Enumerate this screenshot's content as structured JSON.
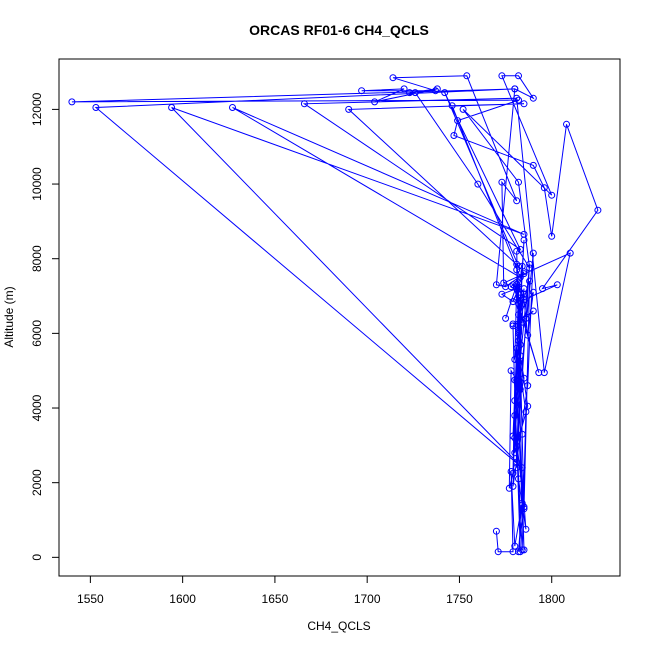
{
  "chart_data": {
    "type": "line",
    "title": "ORCAS RF01-6 CH4_QCLS",
    "xlabel": "CH4_QCLS",
    "ylabel": "Altitude (m)",
    "xlim": [
      1533,
      1837
    ],
    "ylim": [
      -500,
      13350
    ],
    "xticks": [
      1550,
      1600,
      1650,
      1700,
      1750,
      1800
    ],
    "yticks": [
      0,
      2000,
      4000,
      6000,
      8000,
      10000,
      12000
    ],
    "color": "#0000ff",
    "marker": "open-circle",
    "grid": false,
    "legend": "none",
    "series": [
      {
        "x": [
          1770,
          1771,
          1779,
          1778,
          1780,
          1784,
          1782,
          1785,
          1781,
          1783,
          1782,
          1784,
          1786,
          1780,
          1779,
          1777,
          1778,
          1781,
          1785,
          1782,
          1780,
          1787,
          1783,
          1785,
          1779,
          1781,
          1786,
          1784,
          1780,
          1782,
          1783,
          1781,
          1779,
          1786,
          1790,
          1779,
          1784,
          1782,
          1793,
          1781,
          1785,
          1783,
          1779,
          1781,
          1780,
          1782,
          1785,
          1780,
          1783,
          1781,
          1784,
          1781,
          1782,
          1785,
          1780,
          1788,
          1781,
          1784,
          1782,
          1781,
          1783,
          1790,
          1787,
          1779,
          1782,
          1785,
          1788,
          1782,
          1790,
          1787,
          1785,
          1803,
          1795,
          1825,
          1808,
          1800,
          1796,
          1790,
          1747,
          1749,
          1782,
          1540,
          1780,
          1790,
          1782,
          1773,
          1800,
          1752,
          1782,
          1788,
          1760,
          1726,
          1723,
          1738,
          1704,
          1720,
          1697,
          1737,
          1714,
          1754,
          1781,
          1773,
          1774,
          1810,
          1796,
          1781,
          1666,
          1783,
          1742,
          1782,
          1690,
          1785,
          1746,
          1783,
          1627,
          1785,
          1594,
          1784,
          1553,
          1780,
          1770,
          1775,
          1785,
          1781,
          1773,
          1779,
          1782,
          1783,
          1778,
          1785,
          1781,
          1775
        ],
        "y": [
          700,
          150,
          150,
          2300,
          300,
          1450,
          150,
          1350,
          3100,
          150,
          2100,
          1400,
          750,
          4750,
          2250,
          1850,
          5000,
          4750,
          200,
          5250,
          2800,
          4050,
          5400,
          4800,
          3250,
          5600,
          3900,
          200,
          4200,
          5800,
          4500,
          2400,
          6200,
          6400,
          6600,
          6250,
          6300,
          6800,
          4950,
          6900,
          7050,
          6700,
          7300,
          7250,
          5300,
          6000,
          7200,
          3200,
          5700,
          7850,
          3300,
          7700,
          6100,
          8500,
          3800,
          7850,
          2550,
          7800,
          6050,
          8200,
          4700,
          8150,
          4600,
          1900,
          7250,
          1300,
          7400,
          6500,
          7100,
          5950,
          6900,
          7300,
          7200,
          9300,
          11600,
          8600,
          9900,
          10500,
          11300,
          11700,
          12250,
          12200,
          12550,
          12300,
          12900,
          12900,
          9700,
          12000,
          10050,
          7750,
          10000,
          12450,
          12450,
          12550,
          12200,
          12550,
          12500,
          12500,
          12850,
          12900,
          9550,
          10050,
          7350,
          8150,
          4950,
          12300,
          12150,
          8250,
          12450,
          7800,
          12000,
          12150,
          12100,
          7500,
          12050,
          8650,
          12050,
          2400,
          12050,
          12550,
          7300,
          7250,
          7600,
          7200,
          7050,
          6850,
          7200,
          7100,
          7250,
          7650,
          7300,
          6400
        ]
      }
    ]
  }
}
